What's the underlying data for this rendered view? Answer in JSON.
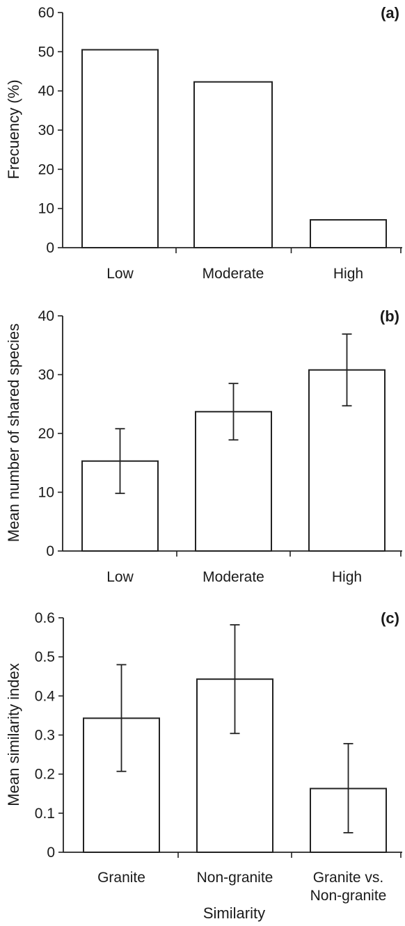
{
  "chart_data": [
    {
      "type": "bar",
      "panel_label": "(a)",
      "categories": [
        "Low",
        "Moderate",
        "High"
      ],
      "values": [
        50.5,
        42.3,
        7.1
      ],
      "errors": null,
      "xlabel": "",
      "ylabel": "Frecuency (%)",
      "ylim": [
        0,
        60
      ],
      "yticks": [
        0,
        10,
        20,
        30,
        40,
        50,
        60
      ],
      "ytick_labels": [
        "0",
        "10",
        "20",
        "30",
        "40",
        "50",
        "60"
      ]
    },
    {
      "type": "bar",
      "panel_label": "(b)",
      "categories": [
        "Low",
        "Moderate",
        "High"
      ],
      "values": [
        15.3,
        23.7,
        30.8
      ],
      "errors": [
        {
          "low": 9.8,
          "high": 20.8
        },
        {
          "low": 18.9,
          "high": 28.5
        },
        {
          "low": 24.7,
          "high": 36.9
        }
      ],
      "xlabel": "",
      "ylabel": "Mean number of shared species",
      "ylim": [
        0,
        40
      ],
      "yticks": [
        0,
        10,
        20,
        30,
        40
      ],
      "ytick_labels": [
        "0",
        "10",
        "20",
        "30",
        "40"
      ]
    },
    {
      "type": "bar",
      "panel_label": "(c)",
      "categories": [
        "Granite",
        "Non-granite",
        "Granite vs. Non-granite"
      ],
      "category_lines": [
        [
          "Granite"
        ],
        [
          "Non-granite"
        ],
        [
          "Granite vs.",
          "Non-granite"
        ]
      ],
      "values": [
        0.343,
        0.443,
        0.163
      ],
      "errors": [
        {
          "low": 0.207,
          "high": 0.48
        },
        {
          "low": 0.304,
          "high": 0.582
        },
        {
          "low": 0.05,
          "high": 0.278
        }
      ],
      "xlabel": "Similarity",
      "ylabel": "Mean similarity index",
      "ylim": [
        0,
        0.6
      ],
      "yticks": [
        0,
        0.1,
        0.2,
        0.3,
        0.4,
        0.5,
        0.6
      ],
      "ytick_labels": [
        "0",
        "0.1",
        "0.2",
        "0.3",
        "0.4",
        "0.5",
        "0.6"
      ]
    }
  ]
}
